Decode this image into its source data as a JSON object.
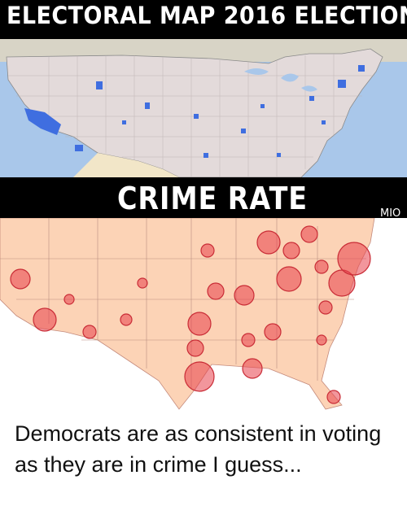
{
  "header": {
    "title": "ELECTORAL MAP 2016 ELECTION"
  },
  "middle_band": {
    "title": "CRIME RATE",
    "logo": "MIO"
  },
  "caption": {
    "text": "Democrats are as consistent in voting as they are in crime I guess..."
  },
  "colors": {
    "band": "#000000",
    "electoral_red": "#d9cfcf",
    "electoral_blue": "#3f6ee0",
    "water": "#a9c7ea",
    "crime_land": "#fcd3b6",
    "crime_circle": "#e8404a"
  }
}
